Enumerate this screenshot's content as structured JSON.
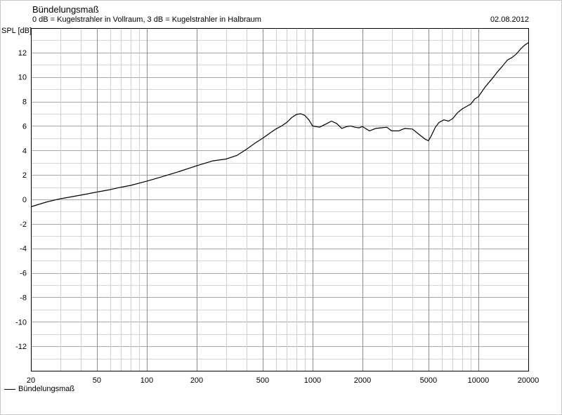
{
  "header": {
    "title": "Bündelungsmaß",
    "subtitle": "0 dB = Kugelstrahler in Vollraum, 3 dB = Kugelstrahler in Halbraum",
    "date": "02.08.2012"
  },
  "chart_data": {
    "type": "line",
    "title": "Bündelungsmaß",
    "ylabel": "SPL [dB]",
    "xlabel": "",
    "x_scale": "log",
    "xlim": [
      20,
      20000
    ],
    "ylim": [
      -14,
      14
    ],
    "grid": true,
    "legend_position": "bottom-left",
    "x_tick_labels": [
      "20",
      "50",
      "100",
      "200",
      "500",
      "1000",
      "2000",
      "5000",
      "10000",
      "20000"
    ],
    "y_tick_labels": [
      "12",
      "10",
      "8",
      "6",
      "4",
      "2",
      "0",
      "-2",
      "-4",
      "-6",
      "-8",
      "-10",
      "-12"
    ],
    "line_color": "#000000",
    "series": [
      {
        "name": "Bündelungsmaß",
        "x": [
          20,
          25,
          30,
          40,
          50,
          60,
          70,
          80,
          100,
          120,
          150,
          200,
          250,
          300,
          350,
          400,
          450,
          500,
          550,
          600,
          650,
          700,
          750,
          800,
          850,
          900,
          950,
          1000,
          1100,
          1200,
          1300,
          1400,
          1500,
          1600,
          1700,
          1800,
          1900,
          2000,
          2200,
          2400,
          2600,
          2800,
          3000,
          3300,
          3600,
          4000,
          4400,
          4800,
          5000,
          5200,
          5500,
          5800,
          6200,
          6600,
          7000,
          7500,
          8000,
          8500,
          9000,
          9500,
          10000,
          11000,
          12000,
          13000,
          14000,
          15000,
          16000,
          17000,
          18000,
          19000,
          20000
        ],
        "y": [
          -0.6,
          -0.2,
          0.05,
          0.35,
          0.6,
          0.8,
          1.0,
          1.15,
          1.5,
          1.8,
          2.2,
          2.75,
          3.15,
          3.3,
          3.6,
          4.1,
          4.6,
          5.0,
          5.4,
          5.75,
          6.0,
          6.3,
          6.7,
          6.95,
          7.0,
          6.85,
          6.5,
          6.0,
          5.9,
          6.15,
          6.4,
          6.2,
          5.8,
          5.95,
          6.0,
          5.9,
          5.85,
          5.95,
          5.6,
          5.8,
          5.85,
          5.9,
          5.6,
          5.6,
          5.8,
          5.75,
          5.3,
          4.9,
          4.8,
          5.2,
          5.9,
          6.3,
          6.5,
          6.4,
          6.6,
          7.1,
          7.4,
          7.6,
          7.8,
          8.2,
          8.4,
          9.2,
          9.8,
          10.4,
          10.9,
          11.4,
          11.6,
          11.9,
          12.3,
          12.6,
          12.8
        ]
      }
    ]
  }
}
